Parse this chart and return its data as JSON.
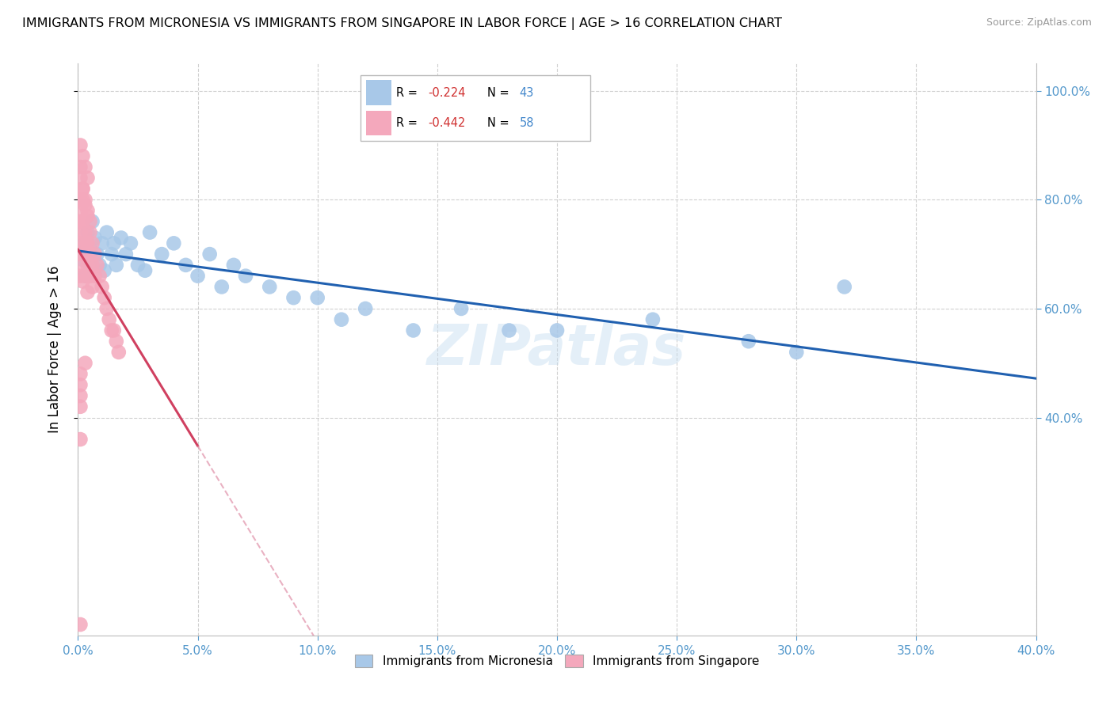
{
  "title": "IMMIGRANTS FROM MICRONESIA VS IMMIGRANTS FROM SINGAPORE IN LABOR FORCE | AGE > 16 CORRELATION CHART",
  "source": "Source: ZipAtlas.com",
  "ylabel": "In Labor Force | Age > 16",
  "legend_blue": {
    "R": "-0.224",
    "N": "43",
    "label": "Immigrants from Micronesia"
  },
  "legend_pink": {
    "R": "-0.442",
    "N": "58",
    "label": "Immigrants from Singapore"
  },
  "blue_color": "#a8c8e8",
  "pink_color": "#f4a8bc",
  "blue_line_color": "#2060b0",
  "pink_line_color": "#d04060",
  "pink_dash_color": "#e090a8",
  "grid_color": "#d0d0d0",
  "watermark": "ZIPatlas",
  "micronesia_x": [
    0.002,
    0.004,
    0.003,
    0.005,
    0.006,
    0.007,
    0.008,
    0.009,
    0.01,
    0.011,
    0.012,
    0.014,
    0.015,
    0.016,
    0.018,
    0.02,
    0.022,
    0.025,
    0.028,
    0.03,
    0.035,
    0.04,
    0.045,
    0.05,
    0.055,
    0.06,
    0.065,
    0.07,
    0.08,
    0.09,
    0.1,
    0.11,
    0.12,
    0.14,
    0.16,
    0.18,
    0.2,
    0.24,
    0.28,
    0.3,
    0.003,
    0.005,
    0.32
  ],
  "micronesia_y": [
    0.69,
    0.74,
    0.72,
    0.71,
    0.76,
    0.73,
    0.7,
    0.68,
    0.72,
    0.67,
    0.74,
    0.7,
    0.72,
    0.68,
    0.73,
    0.7,
    0.72,
    0.68,
    0.67,
    0.74,
    0.7,
    0.72,
    0.68,
    0.66,
    0.7,
    0.64,
    0.68,
    0.66,
    0.64,
    0.62,
    0.62,
    0.58,
    0.6,
    0.56,
    0.6,
    0.56,
    0.56,
    0.58,
    0.54,
    0.52,
    0.66,
    0.68,
    0.64
  ],
  "singapore_x": [
    0.001,
    0.001,
    0.001,
    0.001,
    0.001,
    0.001,
    0.002,
    0.002,
    0.002,
    0.002,
    0.003,
    0.003,
    0.003,
    0.003,
    0.003,
    0.004,
    0.004,
    0.004,
    0.004,
    0.005,
    0.005,
    0.005,
    0.006,
    0.006,
    0.006,
    0.007,
    0.007,
    0.008,
    0.009,
    0.01,
    0.011,
    0.012,
    0.013,
    0.014,
    0.015,
    0.016,
    0.017,
    0.001,
    0.001,
    0.001,
    0.002,
    0.002,
    0.003,
    0.003,
    0.004,
    0.004,
    0.005,
    0.001,
    0.001,
    0.002,
    0.002,
    0.003,
    0.001,
    0.001,
    0.001,
    0.001,
    0.001,
    0.001
  ],
  "singapore_y": [
    0.76,
    0.72,
    0.7,
    0.68,
    0.66,
    0.74,
    0.82,
    0.76,
    0.7,
    0.65,
    0.79,
    0.74,
    0.7,
    0.66,
    0.72,
    0.77,
    0.72,
    0.68,
    0.63,
    0.74,
    0.7,
    0.66,
    0.72,
    0.68,
    0.64,
    0.7,
    0.66,
    0.68,
    0.66,
    0.64,
    0.62,
    0.6,
    0.58,
    0.56,
    0.56,
    0.54,
    0.52,
    0.9,
    0.86,
    0.84,
    0.88,
    0.82,
    0.86,
    0.8,
    0.84,
    0.78,
    0.76,
    0.8,
    0.78,
    0.8,
    0.76,
    0.5,
    0.46,
    0.42,
    0.44,
    0.48,
    0.36,
    0.02
  ],
  "xlim": [
    0.0,
    0.4
  ],
  "ylim": [
    0.0,
    1.05
  ],
  "xtick_vals": [
    0.0,
    0.05,
    0.1,
    0.15,
    0.2,
    0.25,
    0.3,
    0.35,
    0.4
  ],
  "ytick_vals": [
    0.4,
    0.6,
    0.8,
    1.0
  ],
  "right_ytick_labels": [
    "40.0%",
    "60.0%",
    "80.0%",
    "100.0%"
  ],
  "background_color": "#ffffff",
  "spine_color": "#bbbbbb"
}
